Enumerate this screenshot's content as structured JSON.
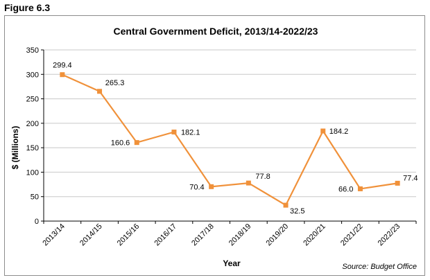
{
  "figure_label": "Figure 6.3",
  "source": "Source: Budget Office",
  "chart_data": {
    "type": "line",
    "title": "Central Government Deficit, 2013/14-2022/23",
    "xlabel": "Year",
    "ylabel": "$ (Millions)",
    "ylim": [
      0,
      350
    ],
    "yticks": [
      "0",
      "50",
      "100",
      "150",
      "200",
      "250",
      "300",
      "350"
    ],
    "categories": [
      "2013/14",
      "2014/15",
      "2015/16",
      "2016/17",
      "2017/18",
      "2018/19",
      "2019/20",
      "2020/21",
      "2021/22",
      "2022/23"
    ],
    "values": [
      299.4,
      265.3,
      160.6,
      182.1,
      70.4,
      77.8,
      32.5,
      184.2,
      66.0,
      77.4
    ],
    "data_labels": [
      "299.4",
      "265.3",
      "160.6",
      "182.1",
      "70.4",
      "77.8",
      "32.5",
      "184.2",
      "66.0",
      "77.4"
    ],
    "line_color": "#f0913a",
    "grid": true,
    "legend": "none"
  }
}
